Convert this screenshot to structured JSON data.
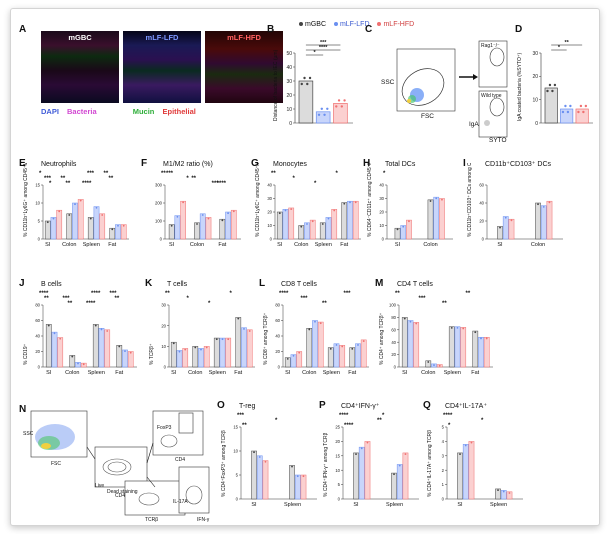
{
  "legend": {
    "groups": [
      "mGBC",
      "mLF-LFD",
      "mLF-HFD"
    ],
    "colors": [
      "#444444",
      "#6a8ff0",
      "#f07070"
    ]
  },
  "panelA": {
    "letter": "A",
    "titles": [
      "mGBC",
      "mLF-LFD",
      "mLF-HFD"
    ],
    "stains": [
      "DAPI",
      "Bacteria",
      "Mucin",
      "Epithelial"
    ],
    "stain_colors": [
      "#3f5bd8",
      "#d248d2",
      "#2fae3a",
      "#e03a3a"
    ]
  },
  "panelB": {
    "letter": "B",
    "ylabel": "Distance of bacteria to IEC (µm)",
    "sig": [
      "***",
      "****",
      "*"
    ],
    "chart_data": {
      "type": "bar",
      "categories": [
        "mGBC",
        "mLF-LFD",
        "mLF-HFD"
      ],
      "values": [
        30,
        8,
        14
      ],
      "ylim": [
        0,
        50
      ],
      "yticks": [
        0,
        10,
        20,
        30,
        40,
        50
      ]
    }
  },
  "panelC": {
    "letter": "C",
    "ssc": "SSC",
    "fsc": "FSC",
    "iga": "IgA",
    "syto": "SYTO",
    "rag": "Rag1⁻/⁻",
    "wt": "Wild type"
  },
  "panelD": {
    "letter": "D",
    "ylabel": "IgA coated bacteria (%SYTO⁺)",
    "sig": [
      "**",
      "*"
    ],
    "chart_data": {
      "type": "bar",
      "categories": [
        "mGBC",
        "mLF-LFD",
        "mLF-HFD"
      ],
      "values": [
        15,
        6,
        6
      ],
      "ylim": [
        0,
        30
      ],
      "yticks": [
        0,
        10,
        20,
        30
      ]
    }
  },
  "panels": [
    {
      "id": "E",
      "title": "Neutrophils",
      "ylabel": "% CD11b⁺Ly6G⁺ among CD45⁺MHCII⁻",
      "categories": [
        "SI",
        "Colon",
        "Spleen",
        "Fat"
      ],
      "yticks": [
        "0",
        "5",
        "10",
        "15"
      ],
      "ymax": 15,
      "values": [
        [
          5,
          6,
          8
        ],
        [
          7,
          10,
          11
        ],
        [
          6,
          9,
          7
        ],
        [
          3,
          4,
          4
        ]
      ],
      "sig": [
        "*",
        "**",
        "****",
        "**",
        "***",
        "**",
        "***",
        "**",
        "*"
      ]
    },
    {
      "id": "F",
      "title": "M1/M2 ratio (%)",
      "ylabel": "",
      "categories": [
        "SI",
        "Colon",
        "Fat"
      ],
      "yticks": [
        "0",
        "100",
        "200",
        "300"
      ],
      "ymax": 300,
      "values": [
        [
          80,
          130,
          210
        ],
        [
          90,
          140,
          120
        ],
        [
          110,
          150,
          160
        ]
      ],
      "sig": [
        "**",
        "*",
        "***",
        "***",
        "**",
        "****"
      ]
    },
    {
      "id": "G",
      "title": "Monocytes",
      "ylabel": "% CD11b⁺Ly6C⁺ among CD45⁺MHCII⁻Neu⁻",
      "categories": [
        "SI",
        "Colon",
        "Spleen",
        "Fat"
      ],
      "yticks": [
        "0",
        "10",
        "20",
        "30",
        "40"
      ],
      "ymax": 40,
      "values": [
        [
          20,
          22,
          23
        ],
        [
          10,
          12,
          14
        ],
        [
          12,
          16,
          22
        ],
        [
          27,
          28,
          28
        ]
      ],
      "sig": [
        "**",
        "*",
        "*",
        "*"
      ]
    },
    {
      "id": "H",
      "title": "Total DCs",
      "ylabel": "% CD64⁻CD11c⁺ among CD45⁺MHCII⁺",
      "categories": [
        "SI",
        "Colon"
      ],
      "yticks": [
        "0",
        "10",
        "20",
        "30",
        "40"
      ],
      "ymax": 40,
      "values": [
        [
          8,
          10,
          14
        ],
        [
          29,
          31,
          30
        ]
      ],
      "sig": [
        "*"
      ]
    },
    {
      "id": "I",
      "title": "CD11b⁺CD103⁺ DCs",
      "ylabel": "% CD11b⁺CD103⁺ DCs among CD45⁺MHCII⁺CD64⁻CD11c⁺",
      "categories": [
        "SI",
        "Colon"
      ],
      "yticks": [
        "0",
        "20",
        "40",
        "60"
      ],
      "ymax": 60,
      "values": [
        [
          14,
          25,
          22
        ],
        [
          40,
          37,
          42
        ]
      ],
      "sig": []
    },
    {
      "id": "J",
      "title": "B cells",
      "ylabel": "% CD19⁺",
      "categories": [
        "SI",
        "Colon",
        "Spleen",
        "Fat"
      ],
      "yticks": [
        "0",
        "20",
        "40",
        "60",
        "80"
      ],
      "ymax": 80,
      "values": [
        [
          55,
          45,
          38
        ],
        [
          15,
          6,
          5
        ],
        [
          55,
          50,
          48
        ],
        [
          28,
          22,
          20
        ]
      ],
      "sig": [
        "****",
        "***",
        "****",
        "***",
        "**",
        "**",
        "****",
        "**"
      ]
    },
    {
      "id": "K",
      "title": "T cells",
      "ylabel": "% TCRβ⁺",
      "categories": [
        "SI",
        "Colon",
        "Spleen",
        "Fat"
      ],
      "yticks": [
        "0",
        "10",
        "20",
        "30"
      ],
      "ymax": 30,
      "values": [
        [
          12,
          8,
          9
        ],
        [
          10,
          9,
          10
        ],
        [
          14,
          14,
          14
        ],
        [
          24,
          19,
          18
        ]
      ],
      "sig": [
        "**",
        "*",
        "*",
        "*"
      ]
    },
    {
      "id": "L",
      "title": "CD8 T cells",
      "ylabel": "% CD8⁺ among TCRβ⁺",
      "categories": [
        "SI",
        "Colon",
        "Spleen",
        "Fat"
      ],
      "yticks": [
        "0",
        "20",
        "40",
        "60",
        "80"
      ],
      "ymax": 80,
      "values": [
        [
          12,
          16,
          20
        ],
        [
          50,
          60,
          58
        ],
        [
          25,
          30,
          28
        ],
        [
          25,
          30,
          35
        ]
      ],
      "sig": [
        "****",
        "***",
        "**",
        "***"
      ]
    },
    {
      "id": "M",
      "title": "CD4 T cells",
      "ylabel": "% CD4⁺ among TCRβ⁺",
      "categories": [
        "SI",
        "Colon",
        "Spleen",
        "Fat"
      ],
      "yticks": [
        "0",
        "20",
        "40",
        "60",
        "80",
        "100"
      ],
      "ymax": 100,
      "values": [
        [
          80,
          75,
          72
        ],
        [
          10,
          5,
          4
        ],
        [
          65,
          65,
          64
        ],
        [
          58,
          48,
          48
        ]
      ],
      "sig": [
        "**",
        "***",
        "**",
        "**"
      ]
    },
    {
      "id": "O",
      "title": "T-reg",
      "ylabel": "% CD4⁺FoxP3⁺ among TCRβ",
      "categories": [
        "SI",
        "Spleen"
      ],
      "yticks": [
        "0",
        "5",
        "10",
        "15"
      ],
      "ymax": 15,
      "values": [
        [
          10,
          9,
          8
        ],
        [
          7,
          5,
          5
        ]
      ],
      "sig": [
        "***",
        "*",
        "**"
      ]
    },
    {
      "id": "P",
      "title": "CD4⁺IFN-γ⁺",
      "ylabel": "% CD4⁺IFN-γ⁺ among TCRβ",
      "categories": [
        "SI",
        "Spleen"
      ],
      "yticks": [
        "0",
        "5",
        "10",
        "15",
        "20",
        "25"
      ],
      "ymax": 25,
      "values": [
        [
          16,
          18,
          20
        ],
        [
          9,
          12,
          16
        ]
      ],
      "sig": [
        "****",
        "**",
        "****",
        "*"
      ]
    },
    {
      "id": "Q",
      "title": "CD4⁺IL-17A⁺",
      "ylabel": "% CD4⁺IL-17A⁺ among TCRβ",
      "categories": [
        "SI",
        "Spleen"
      ],
      "yticks": [
        "0",
        "1",
        "2",
        "3",
        "4",
        "5"
      ],
      "ymax": 5,
      "values": [
        [
          3.2,
          3.8,
          4
        ],
        [
          0.7,
          0.6,
          0.5
        ]
      ],
      "sig": [
        "****",
        "*",
        "*"
      ]
    }
  ],
  "panelN": {
    "letter": "N",
    "labels": [
      "SSC",
      "FSC",
      "Live",
      "Dead staining",
      "FoxP3",
      "CD4",
      "CD4",
      "TCRβ",
      "IL-17A",
      "IFN-γ"
    ]
  }
}
